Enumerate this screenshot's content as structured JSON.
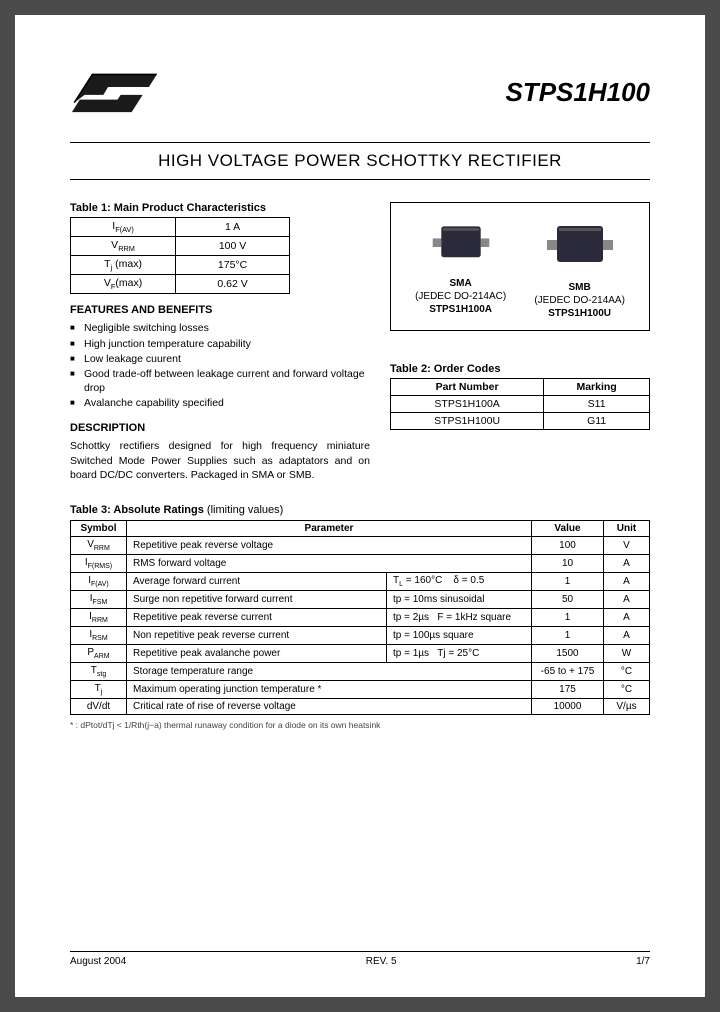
{
  "header": {
    "part_number": "STPS1H100"
  },
  "title": "HIGH VOLTAGE POWER SCHOTTKY RECTIFIER",
  "table1": {
    "caption": "Table 1: Main Product Characteristics",
    "rows": [
      {
        "sym_html": "I<sub>F(AV)</sub>",
        "val": "1 A"
      },
      {
        "sym_html": "V<sub>RRM</sub>",
        "val": "100 V"
      },
      {
        "sym_html": "T<sub>j</sub> (max)",
        "val": "175°C"
      },
      {
        "sym_html": "V<sub>F</sub>(max)",
        "val": "0.62 V"
      }
    ]
  },
  "features": {
    "heading": "FEATURES AND BENEFITS",
    "items": [
      "Negligible switching losses",
      "High junction temperature capability",
      "Low leakage cuurent",
      "Good trade-off between leakage current and forward voltage drop",
      "Avalanche capability specified"
    ]
  },
  "description": {
    "heading": "DESCRIPTION",
    "text": "Schottky rectifiers designed for high frequency miniature Switched Mode Power Supplies such as adaptators and on board DC/DC converters. Packaged in SMA or SMB."
  },
  "packages": {
    "items": [
      {
        "name": "SMA",
        "jedec": "(JEDEC DO-214AC)",
        "pn": "STPS1H100A",
        "chip_w": 48,
        "chip_h": 38,
        "color": "#2a2a3a"
      },
      {
        "name": "SMB",
        "jedec": "(JEDEC DO-214AA)",
        "pn": "STPS1H100U",
        "chip_w": 58,
        "chip_h": 42,
        "color": "#2a2a3a"
      }
    ]
  },
  "table2": {
    "caption": "Table 2: Order Codes",
    "headers": [
      "Part Number",
      "Marking"
    ],
    "rows": [
      [
        "STPS1H100A",
        "S11"
      ],
      [
        "STPS1H100U",
        "G11"
      ]
    ]
  },
  "table3": {
    "caption_bold": "Table 3: Absolute Ratings",
    "caption_rest": " (limiting values)",
    "headers": [
      "Symbol",
      "Parameter",
      "Value",
      "Unit"
    ],
    "rows": [
      {
        "sym_html": "V<sub>RRM</sub>",
        "param": "Repetitive peak reverse voltage",
        "cond": "",
        "val": "100",
        "unit": "V"
      },
      {
        "sym_html": "I<sub>F(RMS)</sub>",
        "param": "RMS forward voltage",
        "cond": "",
        "val": "10",
        "unit": "A"
      },
      {
        "sym_html": "I<sub>F(AV)</sub>",
        "param": "Average forward current",
        "cond": "T<sub>L</sub> = 160°C &nbsp;&nbsp; δ = 0.5",
        "val": "1",
        "unit": "A"
      },
      {
        "sym_html": "I<sub>FSM</sub>",
        "param": "Surge non repetitive forward current",
        "cond": "tp = 10ms sinusoidal",
        "val": "50",
        "unit": "A"
      },
      {
        "sym_html": "I<sub>RRM</sub>",
        "param": "Repetitive peak reverse current",
        "cond": "tp = 2µs &nbsp; F = 1kHz square",
        "val": "1",
        "unit": "A"
      },
      {
        "sym_html": "I<sub>RSM</sub>",
        "param": "Non repetitive peak reverse current",
        "cond": "tp = 100µs square",
        "val": "1",
        "unit": "A"
      },
      {
        "sym_html": "P<sub>ARM</sub>",
        "param": "Repetitive peak avalanche power",
        "cond": "tp = 1µs &nbsp; Tj = 25°C",
        "val": "1500",
        "unit": "W"
      },
      {
        "sym_html": "T<sub>stg</sub>",
        "param": "Storage temperature range",
        "cond": "",
        "val": "-65 to + 175",
        "unit": "°C"
      },
      {
        "sym_html": "T<sub>j</sub>",
        "param": "Maximum operating junction temperature *",
        "cond": "",
        "val": "175",
        "unit": "°C"
      },
      {
        "sym_html": "dV/dt",
        "param": "Critical rate of rise of reverse voltage",
        "cond": "",
        "val": "10000",
        "unit": "V/µs"
      }
    ],
    "footnote": "* : dPtot/dTj < 1/Rth(j−a) thermal runaway condition for a diode on its own heatsink"
  },
  "footer": {
    "date": "August 2004",
    "rev": "REV. 5",
    "page": "1/7"
  },
  "colors": {
    "page_bg": "#ffffff",
    "text": "#000000",
    "border": "#000000"
  }
}
